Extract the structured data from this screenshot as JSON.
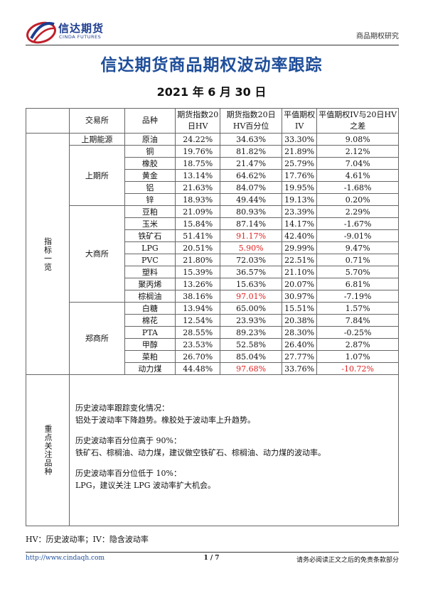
{
  "header": {
    "logo_cn": "信达期货",
    "logo_en": "CINDA FUTURES",
    "right_label": "商品期权研究"
  },
  "title": "信达期货商品期权波动率跟踪",
  "date": "2021 年 6 月 30 日",
  "table": {
    "headers": {
      "exchange": "交易所",
      "product": "品种",
      "hv20": "期货指数20日HV",
      "hv_pct": "期货指数20日HV百分位",
      "iv": "平值期权IV",
      "diff": "平值期权IV与20日HV之差"
    },
    "section1_label": "指标一览",
    "rows": [
      {
        "exchange": "上期能源",
        "product": "原油",
        "hv20": "24.22%",
        "hv_pct": "34.63%",
        "iv": "33.30%",
        "diff": "9.08%"
      },
      {
        "exchange": "上期所",
        "product": "铜",
        "hv20": "19.76%",
        "hv_pct": "81.82%",
        "iv": "21.89%",
        "diff": "2.12%"
      },
      {
        "exchange": "",
        "product": "橡胶",
        "hv20": "18.75%",
        "hv_pct": "21.47%",
        "iv": "25.79%",
        "diff": "7.04%"
      },
      {
        "exchange": "",
        "product": "黄金",
        "hv20": "13.14%",
        "hv_pct": "64.62%",
        "iv": "17.76%",
        "diff": "4.61%"
      },
      {
        "exchange": "",
        "product": "铝",
        "hv20": "21.63%",
        "hv_pct": "84.07%",
        "iv": "19.95%",
        "diff": "-1.68%"
      },
      {
        "exchange": "",
        "product": "锌",
        "hv20": "18.93%",
        "hv_pct": "49.44%",
        "iv": "19.13%",
        "diff": "0.20%"
      },
      {
        "exchange": "大商所",
        "product": "豆粕",
        "hv20": "21.09%",
        "hv_pct": "80.93%",
        "iv": "23.39%",
        "diff": "2.29%"
      },
      {
        "exchange": "",
        "product": "玉米",
        "hv20": "15.84%",
        "hv_pct": "87.14%",
        "iv": "14.17%",
        "diff": "-1.67%"
      },
      {
        "exchange": "",
        "product": "铁矿石",
        "hv20": "51.41%",
        "hv_pct": "91.17%",
        "iv": "42.40%",
        "diff": "-9.01%"
      },
      {
        "exchange": "",
        "product": "LPG",
        "hv20": "20.51%",
        "hv_pct": "5.90%",
        "iv": "29.99%",
        "diff": "9.47%"
      },
      {
        "exchange": "",
        "product": "PVC",
        "hv20": "21.80%",
        "hv_pct": "72.03%",
        "iv": "22.51%",
        "diff": "0.71%"
      },
      {
        "exchange": "",
        "product": "塑料",
        "hv20": "15.39%",
        "hv_pct": "36.57%",
        "iv": "21.10%",
        "diff": "5.70%"
      },
      {
        "exchange": "",
        "product": "聚丙烯",
        "hv20": "13.26%",
        "hv_pct": "15.63%",
        "iv": "20.07%",
        "diff": "6.81%"
      },
      {
        "exchange": "",
        "product": "棕榈油",
        "hv20": "38.16%",
        "hv_pct": "97.01%",
        "iv": "30.97%",
        "diff": "-7.19%"
      },
      {
        "exchange": "郑商所",
        "product": "白糖",
        "hv20": "13.94%",
        "hv_pct": "65.00%",
        "iv": "15.51%",
        "diff": "1.57%"
      },
      {
        "exchange": "",
        "product": "棉花",
        "hv20": "12.54%",
        "hv_pct": "23.93%",
        "iv": "20.38%",
        "diff": "7.84%"
      },
      {
        "exchange": "",
        "product": "PTA",
        "hv20": "28.55%",
        "hv_pct": "89.23%",
        "iv": "28.30%",
        "diff": "-0.25%"
      },
      {
        "exchange": "",
        "product": "甲醇",
        "hv20": "23.53%",
        "hv_pct": "52.58%",
        "iv": "26.40%",
        "diff": "2.87%"
      },
      {
        "exchange": "",
        "product": "菜粕",
        "hv20": "26.70%",
        "hv_pct": "85.04%",
        "iv": "27.77%",
        "diff": "1.07%"
      },
      {
        "exchange": "",
        "product": "动力煤",
        "hv20": "44.48%",
        "hv_pct": "97.68%",
        "iv": "33.76%",
        "diff": "-10.72%"
      }
    ],
    "section2_label": "重点关注品种",
    "notes": [
      {
        "title": "历史波动率跟踪变化情况：",
        "body": "铝处于波动率下降趋势。橡胶处于波动率上升趋势。"
      },
      {
        "title": "历史波动率百分位高于 90%：",
        "body": "铁矿石、棕榈油、动力煤，建议做空铁矿石、棕榈油、动力煤的波动率。"
      },
      {
        "title": "历史波动率百分位低于 10%：",
        "body": "LPG，建议关注 LPG 波动率扩大机会。"
      }
    ]
  },
  "legend": "HV：历史波动率；IV：隐含波动率",
  "footer": {
    "url": "http://www.cindaqh.com",
    "page": "1 / 7",
    "disclaimer": "请务必阅读正文之后的免责条款部分"
  },
  "colors": {
    "brand_blue": "#1f4e9a",
    "highlight_red": "#e02020",
    "logo_red": "#c0202a"
  }
}
